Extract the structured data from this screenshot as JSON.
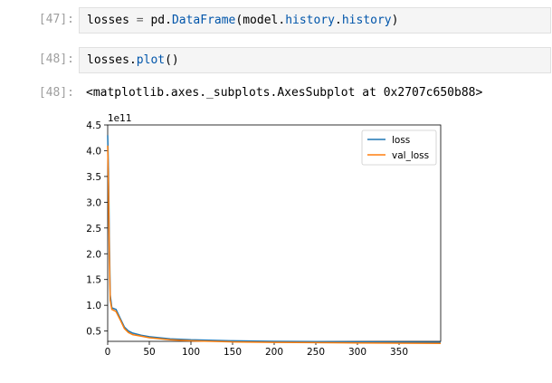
{
  "cells": [
    {
      "prompt": "[47]:",
      "code": {
        "var": "losses",
        "op": " = ",
        "obj": "pd.",
        "cls": "DataFrame",
        "open": "(model.",
        "attr1": "history",
        "dot": ".",
        "attr2": "history",
        "close": ")"
      }
    },
    {
      "prompt": "[48]:",
      "code": {
        "var": "losses.",
        "fn": "plot",
        "call": "()"
      }
    },
    {
      "prompt": "[48]:",
      "output": "<matplotlib.axes._subplots.AxesSubplot at 0x2707c650b88>"
    }
  ],
  "chart_data": {
    "type": "line",
    "offset_label": "1e11",
    "x_ticks": [
      "0",
      "50",
      "100",
      "150",
      "200",
      "250",
      "300",
      "350"
    ],
    "y_ticks": [
      "0.5",
      "1.0",
      "1.5",
      "2.0",
      "2.5",
      "3.0",
      "3.5",
      "4.0",
      "4.5"
    ],
    "xlim": [
      0,
      400
    ],
    "ylim": [
      0.3,
      4.5
    ],
    "legend_position": "top-right",
    "colors": {
      "loss": "#1f77b4",
      "val_loss": "#ff7f0e"
    },
    "series": [
      {
        "name": "loss",
        "x": [
          0,
          1,
          2,
          3,
          5,
          10,
          15,
          20,
          25,
          30,
          40,
          50,
          75,
          100,
          150,
          200,
          250,
          300,
          350,
          400
        ],
        "y": [
          4.3,
          3.6,
          2.3,
          1.2,
          0.95,
          0.92,
          0.75,
          0.58,
          0.5,
          0.46,
          0.42,
          0.39,
          0.35,
          0.33,
          0.31,
          0.3,
          0.295,
          0.29,
          0.285,
          0.28
        ]
      },
      {
        "name": "val_loss",
        "x": [
          0,
          1,
          2,
          3,
          5,
          10,
          15,
          20,
          25,
          30,
          40,
          50,
          75,
          100,
          150,
          200,
          250,
          300,
          350,
          400
        ],
        "y": [
          4.1,
          3.3,
          2.0,
          1.1,
          0.92,
          0.88,
          0.72,
          0.55,
          0.47,
          0.43,
          0.4,
          0.37,
          0.33,
          0.31,
          0.29,
          0.28,
          0.275,
          0.27,
          0.265,
          0.26
        ]
      }
    ]
  }
}
